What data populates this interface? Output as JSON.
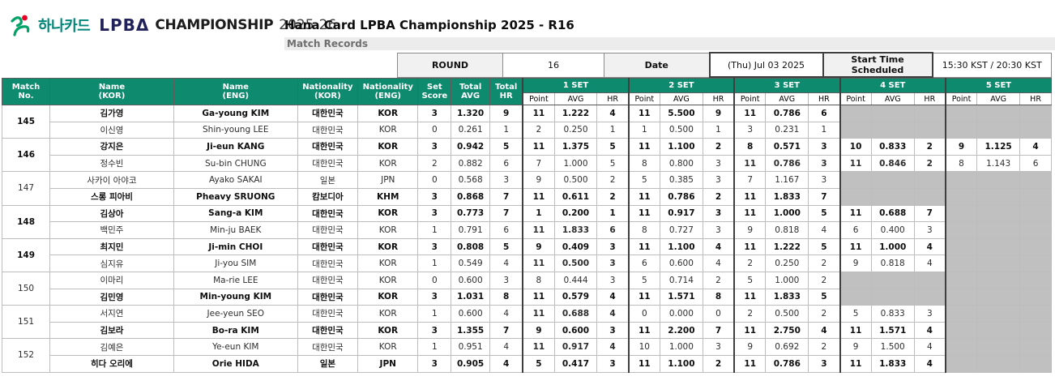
{
  "logo": {
    "hana_text": "하나카드",
    "wordmark": "LPBΔ",
    "championship": "CHAMPIONSHIP",
    "season": "2025-26"
  },
  "header": {
    "title": "Hana Card LPBA Championship 2025 - R16",
    "subtitle": "Match Records"
  },
  "info_bar": {
    "round_label": "ROUND",
    "round_value": "16",
    "date_label": "Date",
    "date_value": "(Thu) Jul 03 2025",
    "start_time_label": "Start Time Scheduled",
    "start_time_value": "15:30 KST / 20:30 KST"
  },
  "table": {
    "columns": {
      "match_no": "Match\nNo.",
      "name_kor": "Name\n(KOR)",
      "name_eng": "Name\n(ENG)",
      "nat_kor": "Nationality\n(KOR)",
      "nat_eng": "Nationality\n(ENG)",
      "set_score": "Set\nScore",
      "total_avg": "Total\nAVG",
      "total_hr": "Total\nHR"
    },
    "set_headers": [
      "1 SET",
      "2 SET",
      "3 SET",
      "4 SET",
      "5 SET"
    ],
    "set_sub_headers": [
      "Point",
      "AVG",
      "HR"
    ]
  },
  "colors": {
    "header_teal": "#0e8a6e",
    "empty_cell_gray": "#c0c0c0",
    "subtitle_bar_gray": "#ececec",
    "hana_teal": "#008578",
    "hana_symbol_green": "#00a266",
    "hana_symbol_red": "#e60023"
  },
  "matches": [
    {
      "no": "145",
      "players": [
        {
          "name_kor": "김가영",
          "name_eng": "Ga-young KIM",
          "nat_kor": "대한민국",
          "nat_eng": "KOR",
          "winner": true,
          "set_score": "3",
          "total_avg": "1.320",
          "total_hr": "9",
          "sets": [
            {
              "point": "11",
              "avg": "1.222",
              "hr": "4",
              "win": true
            },
            {
              "point": "11",
              "avg": "5.500",
              "hr": "9",
              "win": true
            },
            {
              "point": "11",
              "avg": "0.786",
              "hr": "6",
              "win": true
            },
            null,
            null
          ]
        },
        {
          "name_kor": "이신영",
          "name_eng": "Shin-young LEE",
          "nat_kor": "대한민국",
          "nat_eng": "KOR",
          "winner": false,
          "set_score": "0",
          "total_avg": "0.261",
          "total_hr": "1",
          "sets": [
            {
              "point": "2",
              "avg": "0.250",
              "hr": "1",
              "win": false
            },
            {
              "point": "1",
              "avg": "0.500",
              "hr": "1",
              "win": false
            },
            {
              "point": "3",
              "avg": "0.231",
              "hr": "1",
              "win": false
            },
            null,
            null
          ]
        }
      ]
    },
    {
      "no": "146",
      "players": [
        {
          "name_kor": "강지은",
          "name_eng": "Ji-eun KANG",
          "nat_kor": "대한민국",
          "nat_eng": "KOR",
          "winner": true,
          "set_score": "3",
          "total_avg": "0.942",
          "total_hr": "5",
          "sets": [
            {
              "point": "11",
              "avg": "1.375",
              "hr": "5",
              "win": true
            },
            {
              "point": "11",
              "avg": "1.100",
              "hr": "2",
              "win": true
            },
            {
              "point": "8",
              "avg": "0.571",
              "hr": "3",
              "win": false
            },
            {
              "point": "10",
              "avg": "0.833",
              "hr": "2",
              "win": false
            },
            {
              "point": "9",
              "avg": "1.125",
              "hr": "4",
              "win": true
            }
          ]
        },
        {
          "name_kor": "정수빈",
          "name_eng": "Su-bin CHUNG",
          "nat_kor": "대한민국",
          "nat_eng": "KOR",
          "winner": false,
          "set_score": "2",
          "total_avg": "0.882",
          "total_hr": "6",
          "sets": [
            {
              "point": "7",
              "avg": "1.000",
              "hr": "5",
              "win": false
            },
            {
              "point": "8",
              "avg": "0.800",
              "hr": "3",
              "win": false
            },
            {
              "point": "11",
              "avg": "0.786",
              "hr": "3",
              "win": true
            },
            {
              "point": "11",
              "avg": "0.846",
              "hr": "2",
              "win": true
            },
            {
              "point": "8",
              "avg": "1.143",
              "hr": "6",
              "win": false
            }
          ]
        }
      ]
    },
    {
      "no": "147",
      "players": [
        {
          "name_kor": "사카이 아야코",
          "name_eng": "Ayako SAKAI",
          "nat_kor": "일본",
          "nat_eng": "JPN",
          "winner": false,
          "set_score": "0",
          "total_avg": "0.568",
          "total_hr": "3",
          "sets": [
            {
              "point": "9",
              "avg": "0.500",
              "hr": "2",
              "win": false
            },
            {
              "point": "5",
              "avg": "0.385",
              "hr": "3",
              "win": false
            },
            {
              "point": "7",
              "avg": "1.167",
              "hr": "3",
              "win": false
            },
            null,
            null
          ]
        },
        {
          "name_kor": "스롱 피아비",
          "name_eng": "Pheavy SRUONG",
          "nat_kor": "캄보디아",
          "nat_eng": "KHM",
          "winner": true,
          "set_score": "3",
          "total_avg": "0.868",
          "total_hr": "7",
          "sets": [
            {
              "point": "11",
              "avg": "0.611",
              "hr": "2",
              "win": true
            },
            {
              "point": "11",
              "avg": "0.786",
              "hr": "2",
              "win": true
            },
            {
              "point": "11",
              "avg": "1.833",
              "hr": "7",
              "win": true
            },
            null,
            null
          ]
        }
      ]
    },
    {
      "no": "148",
      "players": [
        {
          "name_kor": "김상아",
          "name_eng": "Sang-a KIM",
          "nat_kor": "대한민국",
          "nat_eng": "KOR",
          "winner": true,
          "set_score": "3",
          "total_avg": "0.773",
          "total_hr": "7",
          "sets": [
            {
              "point": "1",
              "avg": "0.200",
              "hr": "1",
              "win": false
            },
            {
              "point": "11",
              "avg": "0.917",
              "hr": "3",
              "win": true
            },
            {
              "point": "11",
              "avg": "1.000",
              "hr": "5",
              "win": true
            },
            {
              "point": "11",
              "avg": "0.688",
              "hr": "7",
              "win": true
            },
            null
          ]
        },
        {
          "name_kor": "백민주",
          "name_eng": "Min-ju BAEK",
          "nat_kor": "대한민국",
          "nat_eng": "KOR",
          "winner": false,
          "set_score": "1",
          "total_avg": "0.791",
          "total_hr": "6",
          "sets": [
            {
              "point": "11",
              "avg": "1.833",
              "hr": "6",
              "win": true
            },
            {
              "point": "8",
              "avg": "0.727",
              "hr": "3",
              "win": false
            },
            {
              "point": "9",
              "avg": "0.818",
              "hr": "4",
              "win": false
            },
            {
              "point": "6",
              "avg": "0.400",
              "hr": "3",
              "win": false
            },
            null
          ]
        }
      ]
    },
    {
      "no": "149",
      "players": [
        {
          "name_kor": "최지민",
          "name_eng": "Ji-min CHOI",
          "nat_kor": "대한민국",
          "nat_eng": "KOR",
          "winner": true,
          "set_score": "3",
          "total_avg": "0.808",
          "total_hr": "5",
          "sets": [
            {
              "point": "9",
              "avg": "0.409",
              "hr": "3",
              "win": false
            },
            {
              "point": "11",
              "avg": "1.100",
              "hr": "4",
              "win": true
            },
            {
              "point": "11",
              "avg": "1.222",
              "hr": "5",
              "win": true
            },
            {
              "point": "11",
              "avg": "1.000",
              "hr": "4",
              "win": true
            },
            null
          ]
        },
        {
          "name_kor": "심지유",
          "name_eng": "Ji-you SIM",
          "nat_kor": "대한민국",
          "nat_eng": "KOR",
          "winner": false,
          "set_score": "1",
          "total_avg": "0.549",
          "total_hr": "4",
          "sets": [
            {
              "point": "11",
              "avg": "0.500",
              "hr": "3",
              "win": true
            },
            {
              "point": "6",
              "avg": "0.600",
              "hr": "4",
              "win": false
            },
            {
              "point": "2",
              "avg": "0.250",
              "hr": "2",
              "win": false
            },
            {
              "point": "9",
              "avg": "0.818",
              "hr": "4",
              "win": false
            },
            null
          ]
        }
      ]
    },
    {
      "no": "150",
      "players": [
        {
          "name_kor": "이마리",
          "name_eng": "Ma-rie LEE",
          "nat_kor": "대한민국",
          "nat_eng": "KOR",
          "winner": false,
          "set_score": "0",
          "total_avg": "0.600",
          "total_hr": "3",
          "sets": [
            {
              "point": "8",
              "avg": "0.444",
              "hr": "3",
              "win": false
            },
            {
              "point": "5",
              "avg": "0.714",
              "hr": "2",
              "win": false
            },
            {
              "point": "5",
              "avg": "1.000",
              "hr": "2",
              "win": false
            },
            null,
            null
          ]
        },
        {
          "name_kor": "김민영",
          "name_eng": "Min-young KIM",
          "nat_kor": "대한민국",
          "nat_eng": "KOR",
          "winner": true,
          "set_score": "3",
          "total_avg": "1.031",
          "total_hr": "8",
          "sets": [
            {
              "point": "11",
              "avg": "0.579",
              "hr": "4",
              "win": true
            },
            {
              "point": "11",
              "avg": "1.571",
              "hr": "8",
              "win": true
            },
            {
              "point": "11",
              "avg": "1.833",
              "hr": "5",
              "win": true
            },
            null,
            null
          ]
        }
      ]
    },
    {
      "no": "151",
      "players": [
        {
          "name_kor": "서지연",
          "name_eng": "Jee-yeun SEO",
          "nat_kor": "대한민국",
          "nat_eng": "KOR",
          "winner": false,
          "set_score": "1",
          "total_avg": "0.600",
          "total_hr": "4",
          "sets": [
            {
              "point": "11",
              "avg": "0.688",
              "hr": "4",
              "win": true
            },
            {
              "point": "0",
              "avg": "0.000",
              "hr": "0",
              "win": false
            },
            {
              "point": "2",
              "avg": "0.500",
              "hr": "2",
              "win": false
            },
            {
              "point": "5",
              "avg": "0.833",
              "hr": "3",
              "win": false
            },
            null
          ]
        },
        {
          "name_kor": "김보라",
          "name_eng": "Bo-ra KIM",
          "nat_kor": "대한민국",
          "nat_eng": "KOR",
          "winner": true,
          "set_score": "3",
          "total_avg": "1.355",
          "total_hr": "7",
          "sets": [
            {
              "point": "9",
              "avg": "0.600",
              "hr": "3",
              "win": false
            },
            {
              "point": "11",
              "avg": "2.200",
              "hr": "7",
              "win": true
            },
            {
              "point": "11",
              "avg": "2.750",
              "hr": "4",
              "win": true
            },
            {
              "point": "11",
              "avg": "1.571",
              "hr": "4",
              "win": true
            },
            null
          ]
        }
      ]
    },
    {
      "no": "152",
      "players": [
        {
          "name_kor": "김예은",
          "name_eng": "Ye-eun KIM",
          "nat_kor": "대한민국",
          "nat_eng": "KOR",
          "winner": false,
          "set_score": "1",
          "total_avg": "0.951",
          "total_hr": "4",
          "sets": [
            {
              "point": "11",
              "avg": "0.917",
              "hr": "4",
              "win": true
            },
            {
              "point": "10",
              "avg": "1.000",
              "hr": "3",
              "win": false
            },
            {
              "point": "9",
              "avg": "0.692",
              "hr": "2",
              "win": false
            },
            {
              "point": "9",
              "avg": "1.500",
              "hr": "4",
              "win": false
            },
            null
          ]
        },
        {
          "name_kor": "히다 오리에",
          "name_eng": "Orie HIDA",
          "nat_kor": "일본",
          "nat_eng": "JPN",
          "winner": true,
          "set_score": "3",
          "total_avg": "0.905",
          "total_hr": "4",
          "sets": [
            {
              "point": "5",
              "avg": "0.417",
              "hr": "3",
              "win": false
            },
            {
              "point": "11",
              "avg": "1.100",
              "hr": "2",
              "win": true
            },
            {
              "point": "11",
              "avg": "0.786",
              "hr": "3",
              "win": true
            },
            {
              "point": "11",
              "avg": "1.833",
              "hr": "4",
              "win": true
            },
            null
          ]
        }
      ]
    }
  ]
}
